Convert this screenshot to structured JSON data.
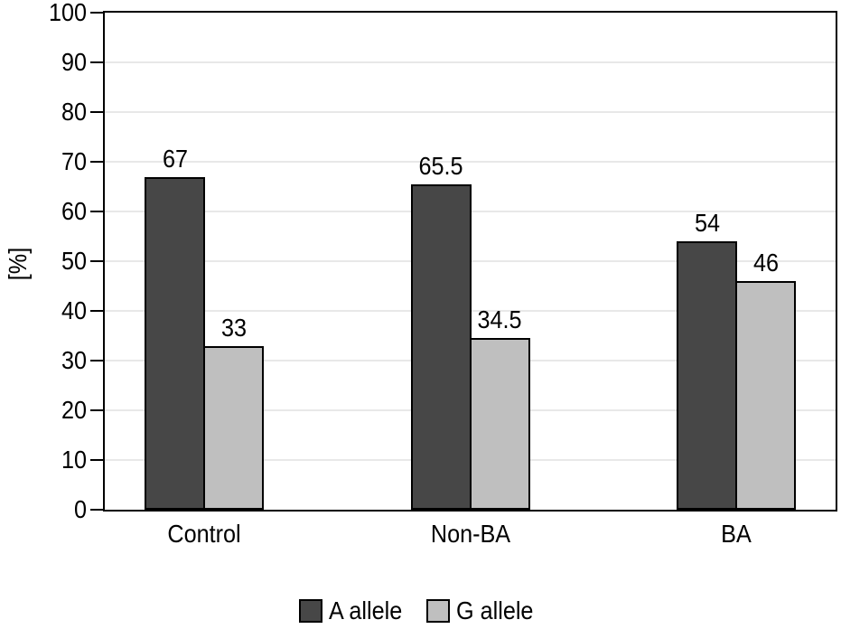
{
  "figure": {
    "background_color": "#ffffff",
    "axis_color": "#000000",
    "grid_color": "#e8e8e8",
    "text_color": "#000000"
  },
  "chart_data": {
    "type": "bar",
    "title": "",
    "xlabel": "",
    "ylabel": "[%]",
    "categories": [
      "Control",
      "Non-BA",
      "BA"
    ],
    "series": [
      {
        "name": "A allele",
        "color": "#474747",
        "values": [
          67,
          65.5,
          54
        ],
        "value_labels": [
          "67",
          "65.5",
          "54"
        ]
      },
      {
        "name": "G allele",
        "color": "#bfbfbf",
        "values": [
          33,
          34.5,
          46
        ],
        "value_labels": [
          "33",
          "34.5",
          "46"
        ]
      }
    ],
    "ylim": [
      0,
      100
    ],
    "yticks": [
      0,
      10,
      20,
      30,
      40,
      50,
      60,
      70,
      80,
      90,
      100
    ],
    "ytick_labels": [
      "0",
      "10",
      "20",
      "30",
      "40",
      "50",
      "60",
      "70",
      "80",
      "90",
      "100"
    ],
    "grid": true,
    "grid_axis": "y",
    "bar_border_color": "#000000",
    "legend_position": "bottom",
    "legend": [
      "A allele",
      "G allele"
    ]
  }
}
